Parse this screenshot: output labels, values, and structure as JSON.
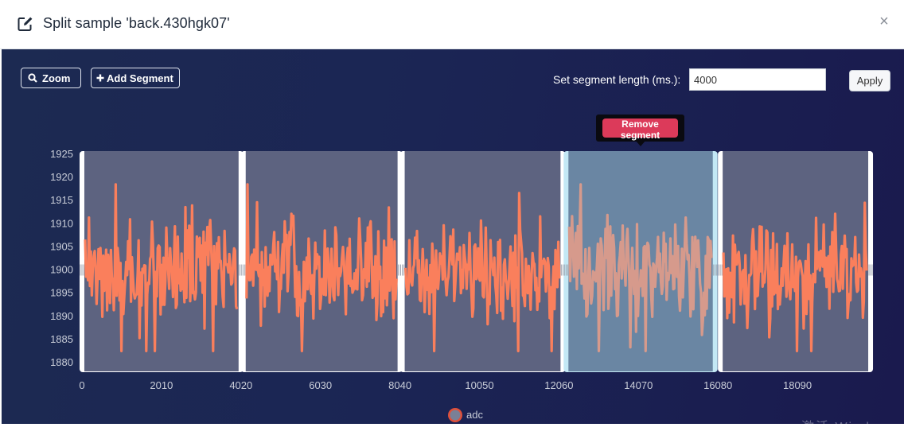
{
  "dialog": {
    "title": "Split sample 'back.430hgk07'",
    "close_symbol": "×",
    "header_icon": "edit-icon"
  },
  "toolbar": {
    "zoom_label": "Zoom",
    "add_segment_label": "Add Segment",
    "segment_length_label": "Set segment length (ms.):",
    "segment_length_value": "4000",
    "apply_label": "Apply"
  },
  "tooltip": {
    "remove_label": "Remove segment"
  },
  "watermark": {
    "text": "激活 Windows"
  },
  "colors": {
    "signal": "#fa7f5c",
    "signal_selected": "#d69a8c",
    "segment_fill": "#5d6380",
    "segment_selected_fill": "#6a86a3",
    "segment_border": "#ffffff",
    "segment_selected_border": "#c3e8f5",
    "remove_button": "#dc3a5a"
  },
  "chart_data": {
    "type": "line",
    "series": [
      {
        "name": "adc"
      }
    ],
    "x_ticks": [
      0,
      2010,
      4020,
      6030,
      8040,
      10050,
      12060,
      14070,
      16080,
      18090
    ],
    "y_ticks": [
      1880,
      1885,
      1890,
      1895,
      1900,
      1905,
      1910,
      1915,
      1920,
      1925
    ],
    "xlim": [
      0,
      20000
    ],
    "ylim": [
      1878,
      1926
    ],
    "baseline": 1900,
    "segments": [
      {
        "start": 60,
        "end": 3960,
        "selected": false
      },
      {
        "start": 4140,
        "end": 7980,
        "selected": false
      },
      {
        "start": 8160,
        "end": 12100,
        "selected": false
      },
      {
        "start": 12300,
        "end": 15950,
        "selected": true
      },
      {
        "start": 16200,
        "end": 19880,
        "selected": false
      }
    ],
    "legend_position": "bottom",
    "grid": false
  }
}
